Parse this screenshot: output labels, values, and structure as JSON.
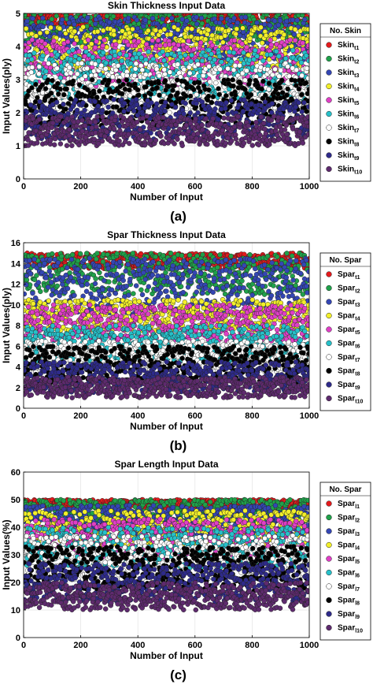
{
  "panels": [
    {
      "label": "(a)",
      "legend_title": "No. Skin",
      "legend_base": "Skin",
      "chart_data": {
        "type": "scatter",
        "title": "Skin Thickness Input Data",
        "xlabel": "Number of Input",
        "ylabel": "Input Values(ply)",
        "xlim": [
          0,
          1000
        ],
        "ylim": [
          0,
          5
        ],
        "xticks": [
          0,
          200,
          400,
          600,
          800,
          1000
        ],
        "yticks": [
          0,
          1,
          2,
          3,
          4,
          5
        ],
        "grid": true,
        "legend_position": "right-outside",
        "n_points_per_series": 1000,
        "series": [
          {
            "name": "Skin_t1",
            "sub": "t1",
            "range": [
              4.6,
              5.0
            ],
            "color": "#e41a1c"
          },
          {
            "name": "Skin_t2",
            "sub": "t2",
            "range": [
              4.1,
              5.0
            ],
            "color": "#1fa14a"
          },
          {
            "name": "Skin_t3",
            "sub": "t3",
            "range": [
              3.6,
              4.9
            ],
            "color": "#3446b4"
          },
          {
            "name": "Skin_t4",
            "sub": "t4",
            "range": [
              3.2,
              4.6
            ],
            "color": "#f2ef2a"
          },
          {
            "name": "Skin_t5",
            "sub": "t5",
            "range": [
              2.8,
              4.2
            ],
            "color": "#e03fc6"
          },
          {
            "name": "Skin_t6",
            "sub": "t6",
            "range": [
              2.4,
              3.9
            ],
            "color": "#26c0c9"
          },
          {
            "name": "Skin_t7",
            "sub": "t7",
            "range": [
              2.0,
              3.5
            ],
            "color": "#ffffff"
          },
          {
            "name": "Skin_t8",
            "sub": "t8",
            "range": [
              1.6,
              3.0
            ],
            "color": "#000000"
          },
          {
            "name": "Skin_t9",
            "sub": "t9",
            "range": [
              1.2,
              2.4
            ],
            "color": "#2e2a8a"
          },
          {
            "name": "Skin_t10",
            "sub": "t10",
            "range": [
              1.0,
              1.9
            ],
            "color": "#5e2a6e"
          }
        ]
      }
    },
    {
      "label": "(b)",
      "legend_title": "No. Spar",
      "legend_base": "Spar",
      "chart_data": {
        "type": "scatter",
        "title": "Spar Thickness Input Data",
        "xlabel": "Number of Input",
        "ylabel": "Input Values(ply)",
        "xlim": [
          0,
          1000
        ],
        "ylim": [
          0,
          16
        ],
        "xticks": [
          0,
          200,
          400,
          600,
          800,
          1000
        ],
        "yticks": [
          0,
          2,
          4,
          6,
          8,
          10,
          12,
          14,
          16
        ],
        "grid": true,
        "legend_position": "right-outside",
        "n_points_per_series": 1000,
        "series": [
          {
            "name": "Spar_t1",
            "sub": "t1",
            "range": [
              13.5,
              15.0
            ],
            "color": "#e41a1c"
          },
          {
            "name": "Spar_t2",
            "sub": "t2",
            "range": [
              11.0,
              15.0
            ],
            "color": "#1fa14a"
          },
          {
            "name": "Spar_t3",
            "sub": "t3",
            "range": [
              9.0,
              14.5
            ],
            "color": "#3446b4"
          },
          {
            "name": "Spar_t4",
            "sub": "t4",
            "range": [
              7.5,
              10.5
            ],
            "color": "#f2ef2a"
          },
          {
            "name": "Spar_t5",
            "sub": "t5",
            "range": [
              6.5,
              10.0
            ],
            "color": "#e03fc6"
          },
          {
            "name": "Spar_t6",
            "sub": "t6",
            "range": [
              4.5,
              8.0
            ],
            "color": "#26c0c9"
          },
          {
            "name": "Spar_t7",
            "sub": "t7",
            "range": [
              3.5,
              6.5
            ],
            "color": "#ffffff"
          },
          {
            "name": "Spar_t8",
            "sub": "t8",
            "range": [
              2.5,
              6.0
            ],
            "color": "#000000"
          },
          {
            "name": "Spar_t9",
            "sub": "t9",
            "range": [
              1.5,
              4.5
            ],
            "color": "#2e2a8a"
          },
          {
            "name": "Spar_t10",
            "sub": "t10",
            "range": [
              1.0,
              3.0
            ],
            "color": "#5e2a6e"
          }
        ]
      }
    },
    {
      "label": "(c)",
      "legend_title": "No. Spar",
      "legend_base": "Spar",
      "chart_data": {
        "type": "scatter",
        "title": "Spar Length Input Data",
        "xlabel": "Number of Input",
        "ylabel": "Input Values(%)",
        "xlim": [
          0,
          1000
        ],
        "ylim": [
          0,
          60
        ],
        "xticks": [
          0,
          200,
          400,
          600,
          800,
          1000
        ],
        "yticks": [
          0,
          10,
          20,
          30,
          40,
          50,
          60
        ],
        "grid": true,
        "legend_position": "right-outside",
        "n_points_per_series": 1000,
        "series": [
          {
            "name": "Spar_l1",
            "sub": "l1",
            "range": [
              47,
              50
            ],
            "color": "#e41a1c"
          },
          {
            "name": "Spar_l2",
            "sub": "l2",
            "range": [
              42,
              50
            ],
            "color": "#1fa14a"
          },
          {
            "name": "Spar_l3",
            "sub": "l3",
            "range": [
              37,
              48
            ],
            "color": "#3446b4"
          },
          {
            "name": "Spar_l4",
            "sub": "l4",
            "range": [
              33,
              46
            ],
            "color": "#f2ef2a"
          },
          {
            "name": "Spar_l5",
            "sub": "l5",
            "range": [
              29,
              43
            ],
            "color": "#e03fc6"
          },
          {
            "name": "Spar_l6",
            "sub": "l6",
            "range": [
              25,
              40
            ],
            "color": "#26c0c9"
          },
          {
            "name": "Spar_l7",
            "sub": "l7",
            "range": [
              21,
              37
            ],
            "color": "#ffffff"
          },
          {
            "name": "Spar_l8",
            "sub": "l8",
            "range": [
              17,
              33
            ],
            "color": "#000000"
          },
          {
            "name": "Spar_l9",
            "sub": "l9",
            "range": [
              13,
              27
            ],
            "color": "#2e2a8a"
          },
          {
            "name": "Spar_l10",
            "sub": "l10",
            "range": [
              10,
              20
            ],
            "color": "#5e2a6e"
          }
        ]
      }
    }
  ]
}
